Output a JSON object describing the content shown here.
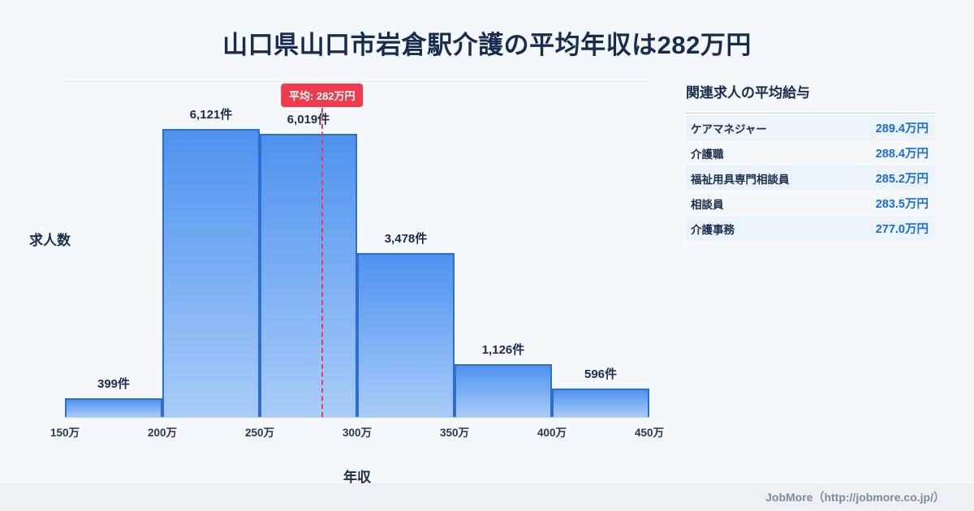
{
  "page": {
    "title": "山口県山口市岩倉駅介護の平均年収は282万円",
    "footer": "JobMore（http://jobmore.co.jp/）"
  },
  "chart_data": {
    "type": "bar",
    "title": "山口県山口市岩倉駅介護の平均年収は282万円",
    "xlabel": "年収",
    "ylabel": "求人数",
    "x_ticks": [
      "150万",
      "200万",
      "250万",
      "300万",
      "350万",
      "400万",
      "450万"
    ],
    "x_range": [
      150,
      450
    ],
    "ylim": [
      0,
      7150
    ],
    "grid": false,
    "legend": "none",
    "categories": [
      "150万-200万",
      "200万-250万",
      "250万-300万",
      "300万-350万",
      "350万-400万",
      "400万-450万"
    ],
    "values": [
      399,
      6121,
      6019,
      3478,
      1126,
      596
    ],
    "bar_labels": [
      "399件",
      "6,121件",
      "6,019件",
      "3,478件",
      "1,126件",
      "596件"
    ],
    "average": {
      "value": 282,
      "label": "平均: 282万円"
    }
  },
  "related": {
    "title": "関連求人の平均給与",
    "rows": [
      {
        "name": "ケアマネジャー",
        "value": "289.4万円"
      },
      {
        "name": "介護職",
        "value": "288.4万円"
      },
      {
        "name": "福祉用具専門相談員",
        "value": "285.2万円"
      },
      {
        "name": "相談員",
        "value": "283.5万円"
      },
      {
        "name": "介護事務",
        "value": "277.0万円"
      }
    ]
  },
  "colors": {
    "background": "#f6f9fc",
    "title_navy": "#162c50",
    "bar_fill_top": "#4e92ef",
    "bar_fill_bottom": "#a9ccf9",
    "bar_border": "#2d6fd0",
    "average_red": "#ee3b4d",
    "value_blue": "#1a6ce0",
    "footer_gray": "#7e8b9d"
  }
}
